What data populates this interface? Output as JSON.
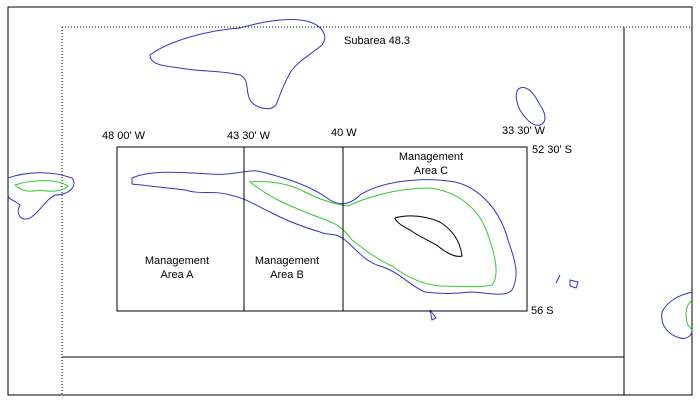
{
  "map": {
    "subarea": "Subarea 48.3",
    "longitudes": [
      "48 00' W",
      "43 30' W",
      "40 W",
      "33 30' W"
    ],
    "latitudes": [
      "52 30' S",
      "56 S"
    ],
    "areas": [
      {
        "lines": [
          "Management",
          "Area A"
        ]
      },
      {
        "lines": [
          "Management",
          "Area B"
        ]
      },
      {
        "lines": [
          "Management",
          "Area C"
        ]
      }
    ]
  }
}
